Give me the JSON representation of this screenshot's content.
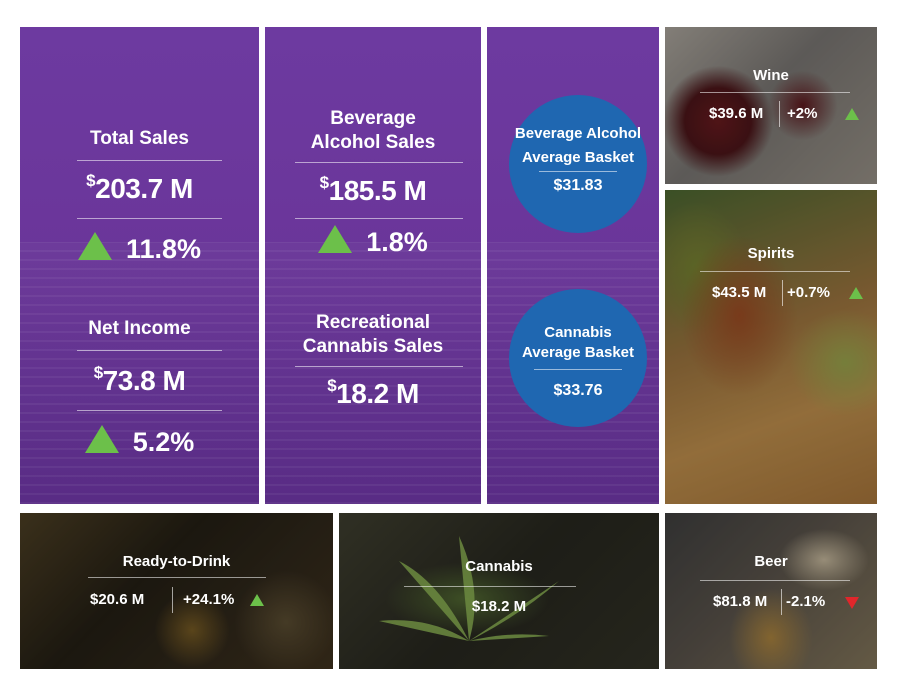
{
  "total_sales": {
    "label": "Total Sales",
    "value": "203.7 M",
    "change": "11.8%"
  },
  "net_income": {
    "label": "Net Income",
    "value": "73.8 M",
    "change": "5.2%"
  },
  "beverage_alcohol_sales": {
    "label_line1": "Beverage",
    "label_line2": "Alcohol Sales",
    "value": "185.5 M",
    "change": "1.8%"
  },
  "recreational_cannabis_sales": {
    "label_line1": "Recreational",
    "label_line2": "Cannabis Sales",
    "value": "18.2 M"
  },
  "currency_symbol": "$",
  "beverage_alcohol_basket": {
    "label_line1": "Beverage Alcohol",
    "label_line2": "Average Basket",
    "value": "$31.83"
  },
  "cannabis_basket": {
    "label_line1": "Cannabis",
    "label_line2": "Average Basket",
    "value": "$33.76"
  },
  "wine": {
    "label": "Wine",
    "value": "$39.6 M",
    "change": "+2%"
  },
  "spirits": {
    "label": "Spirits",
    "value": "$43.5 M",
    "change": "+0.7%"
  },
  "ready_to_drink": {
    "label": "Ready-to-Drink",
    "value": "$20.6 M",
    "change": "+24.1%"
  },
  "cannabis": {
    "label": "Cannabis",
    "value": "$18.2 M"
  },
  "beer": {
    "label": "Beer",
    "value": "$81.8 M",
    "change": "-2.1%"
  },
  "colors": {
    "purple": "#6b3a9e",
    "blue_circle": "#1f67b1",
    "up_arrow": "#6cc04a",
    "down_arrow": "#e0262b"
  }
}
